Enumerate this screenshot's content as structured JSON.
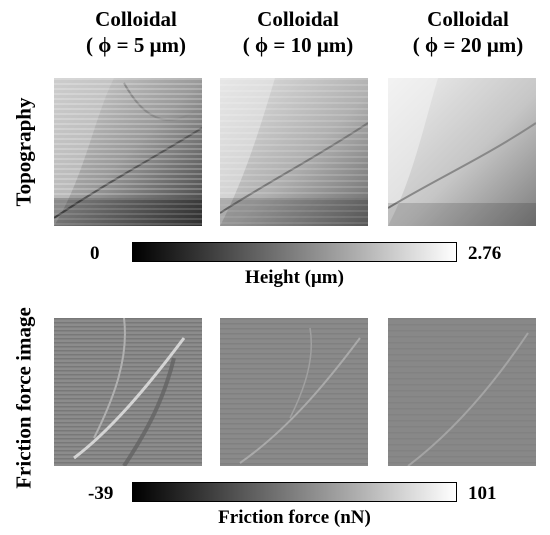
{
  "columns": [
    {
      "line1": "Colloidal",
      "line2": "( ϕ = 5 μm)"
    },
    {
      "line1": "Colloidal",
      "line2": "( ϕ = 10 μm)"
    },
    {
      "line1": "Colloidal",
      "line2": "( ϕ = 20 μm)"
    }
  ],
  "rows": {
    "topography": "Topography",
    "friction": "Friction force image"
  },
  "height_bar": {
    "min": "0",
    "max": "2.76",
    "label": "Height (μm)"
  },
  "friction_bar": {
    "min": "-39",
    "max": "101",
    "label": "Friction force (nN)"
  }
}
